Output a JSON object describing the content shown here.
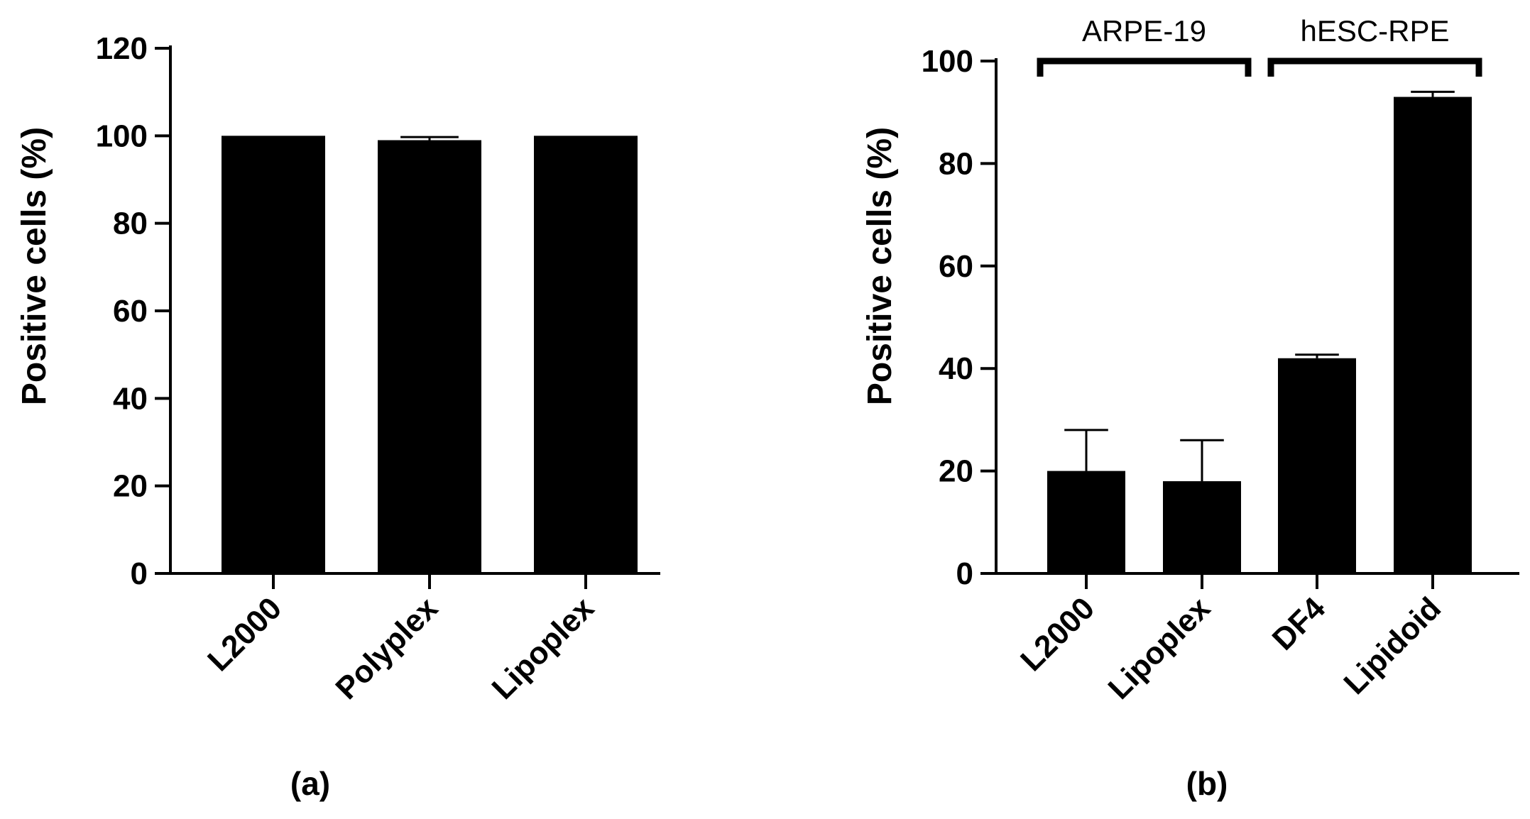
{
  "chart_data": [
    {
      "type": "bar",
      "panel_label": "(a)",
      "categories": [
        "L2000",
        "Polyplex",
        "Lipoplex"
      ],
      "values": [
        100,
        99,
        100
      ],
      "errors": [
        0,
        0.7,
        0
      ],
      "ylabel": "Positive cells (%)",
      "ylim": [
        0,
        120
      ],
      "yticks": [
        0,
        20,
        40,
        60,
        80,
        100,
        120
      ],
      "grid": false,
      "bar_color": "#000000"
    },
    {
      "type": "bar",
      "panel_label": "(b)",
      "categories": [
        "L2000",
        "Lipoplex",
        "DF4",
        "Lipidoid"
      ],
      "values": [
        20,
        18,
        42,
        93
      ],
      "errors": [
        8,
        8,
        0.7,
        1
      ],
      "ylabel": "Positive cells (%)",
      "ylim": [
        0,
        100
      ],
      "yticks": [
        0,
        20,
        40,
        60,
        80,
        100
      ],
      "grid": false,
      "bar_color": "#000000",
      "groups": [
        {
          "label": "ARPE-19",
          "categories": [
            "L2000",
            "Lipoplex"
          ]
        },
        {
          "label": "hESC-RPE",
          "categories": [
            "DF4",
            "Lipidoid"
          ]
        }
      ]
    }
  ]
}
